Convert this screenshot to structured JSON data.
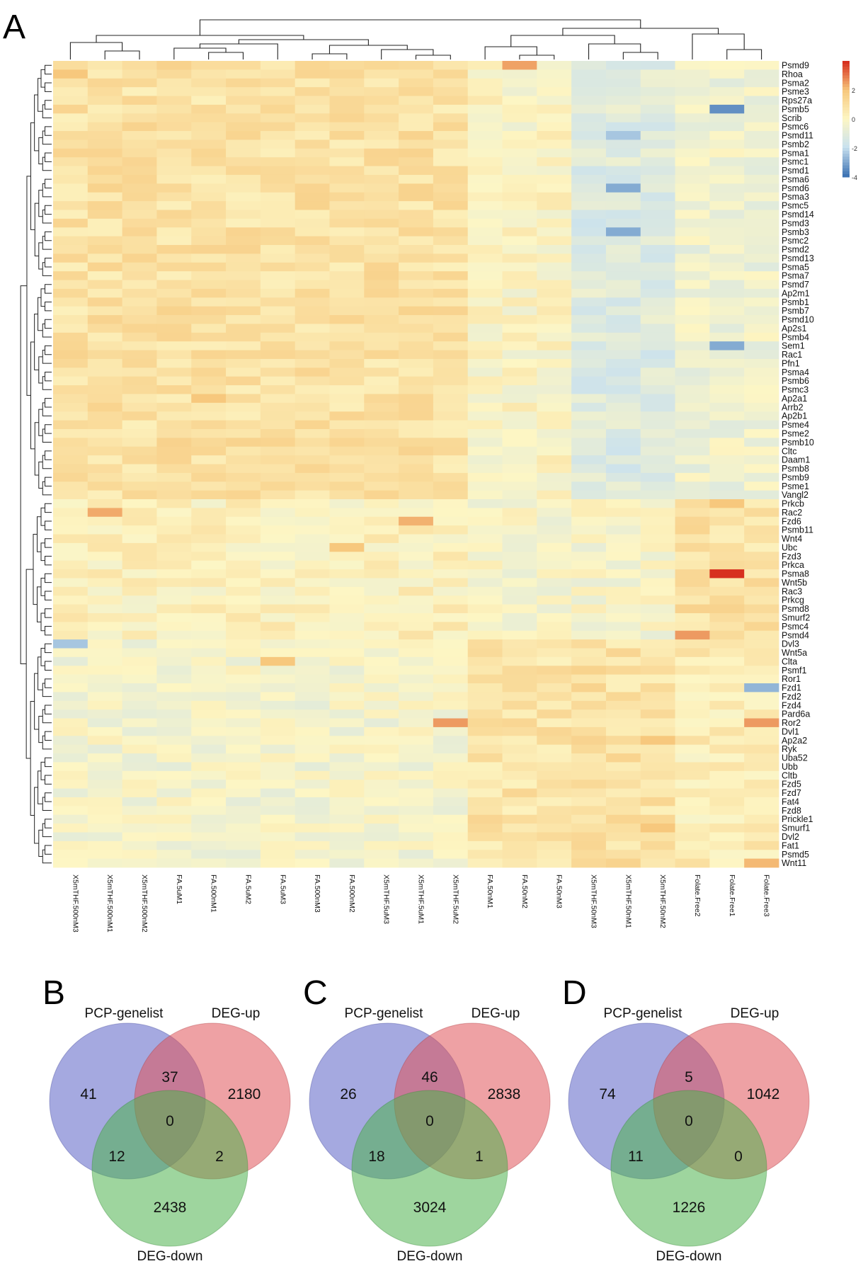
{
  "panel_labels": {
    "a": "A",
    "b": "B",
    "c": "C",
    "d": "D"
  },
  "colors": {
    "heat_low": "#3f74b4",
    "heat_midlow": "#c9e1ef",
    "heat_mid": "#fdf6c4",
    "heat_midhigh": "#f7c87d",
    "heat_high": "#d7301f",
    "venn_pcp": "#5b63c6",
    "venn_up": "#e0545a",
    "venn_down": "#4fb24f",
    "dendro": "#222222"
  },
  "chart_data": [
    {
      "type": "heatmap",
      "panel": "A",
      "title": "",
      "columns": [
        "X5mTHF.500nM3",
        "X5mTHF.500nM1",
        "X5mTHF.500nM2",
        "FA.5uM1",
        "FA.500nM1",
        "FA.5uM2",
        "FA.5uM3",
        "FA.500nM3",
        "FA.500nM2",
        "X5mTHF.5uM3",
        "X5mTHF.5uM1",
        "X5mTHF.5uM2",
        "FA.50nM1",
        "FA.50nM2",
        "FA.50nM3",
        "X5mTHF.50nM3",
        "X5mTHF.50nM1",
        "X5mTHF.50nM2",
        "Folate.Free2",
        "Folate.Free1",
        "Folate.Free3"
      ],
      "rows": [
        "Psmd9",
        "Rhoa",
        "Psma2",
        "Psme3",
        "Rps27a",
        "Psmb5",
        "Scrib",
        "Psmc6",
        "Psmd11",
        "Psmb2",
        "Psma1",
        "Psmc1",
        "Psmd1",
        "Psma6",
        "Psmd6",
        "Psma3",
        "Psmc5",
        "Psmd14",
        "Psmd3",
        "Psmb3",
        "Psmc2",
        "Psmd2",
        "Psmd13",
        "Psma5",
        "Psma7",
        "Psmd7",
        "Ap2m1",
        "Psmb1",
        "Psmb7",
        "Psmd10",
        "Ap2s1",
        "Psmb4",
        "Sem1",
        "Rac1",
        "Pfn1",
        "Psma4",
        "Psmb6",
        "Psmc3",
        "Ap2a1",
        "Arrb2",
        "Ap2b1",
        "Psme4",
        "Psme2",
        "Psmb10",
        "Cltc",
        "Daam1",
        "Psmb8",
        "Psmb9",
        "Psme1",
        "Vangl2",
        "Prkcb",
        "Rac2",
        "Fzd6",
        "Psmb11",
        "Wnt4",
        "Ubc",
        "Fzd3",
        "Prkca",
        "Psma8",
        "Wnt5b",
        "Rac3",
        "Prkcg",
        "Psmd8",
        "Smurf2",
        "Psmc4",
        "Psmd4",
        "Dvl3",
        "Wnt5a",
        "Clta",
        "Psmf1",
        "Ror1",
        "Fzd1",
        "Fzd2",
        "Fzd4",
        "Pard6a",
        "Ror2",
        "Dvl1",
        "Ap2a2",
        "Ryk",
        "Uba52",
        "Ubb",
        "Cltb",
        "Fzd5",
        "Fzd7",
        "Fat4",
        "Fzd8",
        "Prickle1",
        "Smurf1",
        "Dvl2",
        "Fat1",
        "Psmd5",
        "Wnt11"
      ],
      "color_scale": {
        "ticks": [
          2,
          0,
          -2,
          -4
        ],
        "range": [
          -4,
          4
        ]
      },
      "hotspots": [
        {
          "row": "Psma8",
          "col": "Folate.Free1",
          "value": 4
        },
        {
          "row": "Psmd9",
          "col": "FA.50nM2",
          "value": 2.5
        },
        {
          "row": "Rac2",
          "col": "X5mTHF.500nM1",
          "value": 2.4
        },
        {
          "row": "Fzd6",
          "col": "X5mTHF.5uM1",
          "value": 2.3
        },
        {
          "row": "Ror2",
          "col": "X5mTHF.5uM2",
          "value": 2.6
        },
        {
          "row": "Ror2",
          "col": "Folate.Free3",
          "value": 2.6
        },
        {
          "row": "Psmd4",
          "col": "Folate.Free2",
          "value": 2.6
        },
        {
          "row": "Rhoa",
          "col": "X5mTHF.500nM3",
          "value": 2.0
        },
        {
          "row": "Ubc",
          "col": "FA.500nM2",
          "value": 2.0
        },
        {
          "row": "Ap2a1",
          "col": "FA.500nM1",
          "value": 2.0
        },
        {
          "row": "Clta",
          "col": "FA.5uM3",
          "value": 2.0
        },
        {
          "row": "Prkcb",
          "col": "Folate.Free1",
          "value": 2.0
        },
        {
          "row": "Smurf1",
          "col": "X5mTHF.50nM2",
          "value": 2.0
        },
        {
          "row": "Wnt11",
          "col": "Folate.Free3",
          "value": 2.2
        },
        {
          "row": "Ap2a2",
          "col": "X5mTHF.50nM2",
          "value": 2.0
        },
        {
          "row": "Psmb5",
          "col": "Folate.Free1",
          "value": -3.5
        },
        {
          "row": "Psmb3",
          "col": "X5mTHF.50nM1",
          "value": -3.0
        },
        {
          "row": "Psmd6",
          "col": "X5mTHF.50nM1",
          "value": -3.0
        },
        {
          "row": "Sem1",
          "col": "Folate.Free1",
          "value": -3.0
        },
        {
          "row": "Dvl3",
          "col": "X5mTHF.500nM3",
          "value": -2.5
        },
        {
          "row": "Fzd1",
          "col": "Folate.Free3",
          "value": -2.8
        },
        {
          "row": "Psmd11",
          "col": "X5mTHF.50nM1",
          "value": -2.5
        }
      ]
    },
    {
      "type": "venn",
      "panel": "B",
      "sets": [
        "PCP-genelist",
        "DEG-up",
        "DEG-down"
      ],
      "regions": {
        "pcp_only": 41,
        "pcp_up": 37,
        "up_only": 2180,
        "all_three": 0,
        "pcp_down": 12,
        "up_down": 2,
        "down_only": 2438
      }
    },
    {
      "type": "venn",
      "panel": "C",
      "sets": [
        "PCP-genelist",
        "DEG-up",
        "DEG-down"
      ],
      "regions": {
        "pcp_only": 26,
        "pcp_up": 46,
        "up_only": 2838,
        "all_three": 0,
        "pcp_down": 18,
        "up_down": 1,
        "down_only": 3024
      }
    },
    {
      "type": "venn",
      "panel": "D",
      "sets": [
        "PCP-genelist",
        "DEG-up",
        "DEG-down"
      ],
      "regions": {
        "pcp_only": 74,
        "pcp_up": 5,
        "up_only": 1042,
        "all_three": 0,
        "pcp_down": 11,
        "up_down": 0,
        "down_only": 1226
      }
    }
  ]
}
